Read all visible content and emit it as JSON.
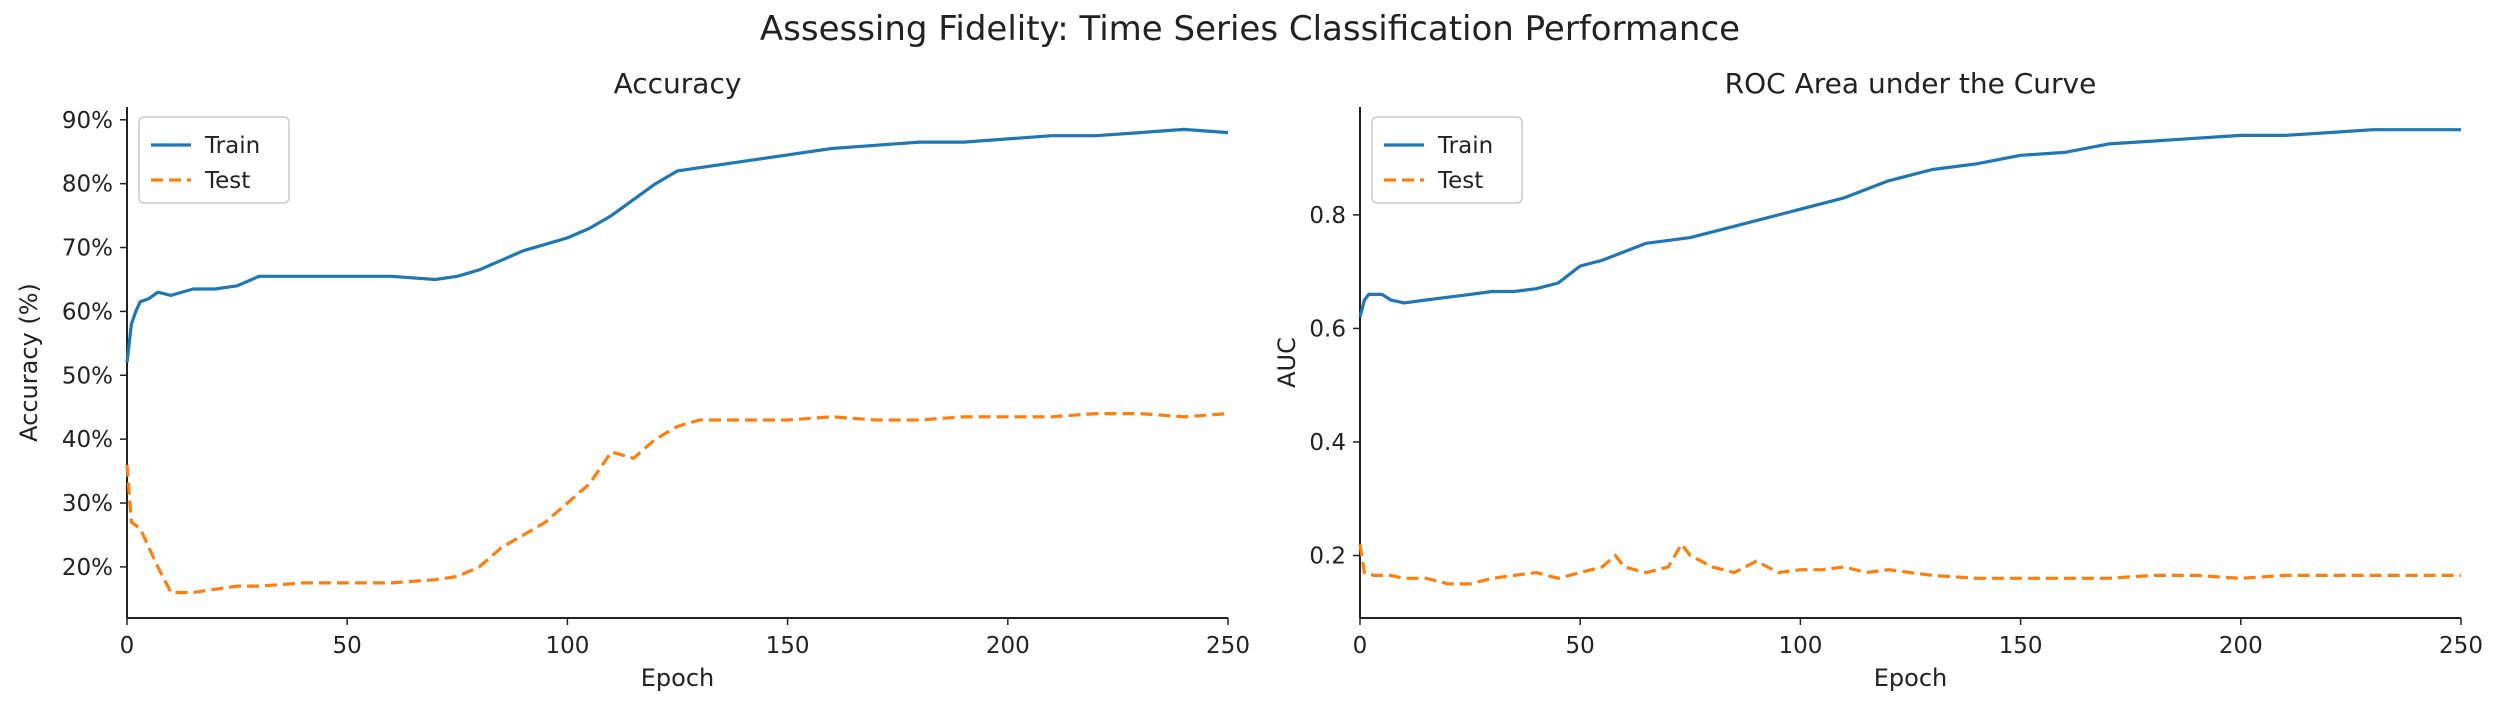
{
  "figure": {
    "title": "Assessing Fidelity: Time Series Classification Performance"
  },
  "colors": {
    "train": "#1f77b4",
    "test": "#ff7f0e",
    "axis": "#222222"
  },
  "chart_data": [
    {
      "type": "line",
      "title": "Accuracy",
      "xlabel": "Epoch",
      "ylabel": "Accuracy (%)",
      "xlim": [
        0,
        250
      ],
      "ylim": [
        12,
        92
      ],
      "xticks": [
        0,
        50,
        100,
        150,
        200,
        250
      ],
      "yticks": [
        20,
        30,
        40,
        50,
        60,
        70,
        80,
        90
      ],
      "ytick_labels": [
        "20%",
        "30%",
        "40%",
        "50%",
        "60%",
        "70%",
        "80%",
        "90%"
      ],
      "grid": false,
      "legend": "top-left",
      "series": [
        {
          "name": "Train",
          "style": "solid",
          "x": [
            0,
            1,
            2,
            3,
            5,
            7,
            10,
            15,
            20,
            25,
            30,
            40,
            50,
            60,
            70,
            75,
            80,
            85,
            90,
            95,
            100,
            105,
            110,
            115,
            120,
            125,
            130,
            140,
            150,
            160,
            170,
            180,
            190,
            200,
            210,
            220,
            230,
            240,
            250
          ],
          "y": [
            52,
            58,
            60,
            61.5,
            62,
            63,
            62.5,
            63.5,
            63.5,
            64,
            65.5,
            65.5,
            65.5,
            65.5,
            65,
            65.5,
            66.5,
            68,
            69.5,
            70.5,
            71.5,
            73,
            75,
            77.5,
            80,
            82,
            82.5,
            83.5,
            84.5,
            85.5,
            86,
            86.5,
            86.5,
            87,
            87.5,
            87.5,
            88,
            88.5,
            88
          ]
        },
        {
          "name": "Test",
          "style": "dashed",
          "x": [
            0,
            1,
            2,
            3,
            5,
            7,
            10,
            15,
            20,
            25,
            30,
            40,
            50,
            60,
            70,
            75,
            80,
            85,
            90,
            95,
            100,
            105,
            108,
            110,
            115,
            120,
            125,
            130,
            140,
            150,
            160,
            170,
            180,
            190,
            200,
            210,
            220,
            230,
            240,
            250
          ],
          "y": [
            36,
            27,
            26.5,
            26,
            23,
            20,
            16,
            16,
            16.5,
            17,
            17,
            17.5,
            17.5,
            17.5,
            18,
            18.5,
            20,
            23,
            25,
            27,
            30,
            33,
            36,
            38,
            37,
            40,
            42,
            43,
            43,
            43,
            43.5,
            43,
            43,
            43.5,
            43.5,
            43.5,
            44,
            44,
            43.5,
            44
          ]
        }
      ]
    },
    {
      "type": "line",
      "title": "ROC Area under the Curve",
      "xlabel": "Epoch",
      "ylabel": "AUC",
      "xlim": [
        0,
        250
      ],
      "ylim": [
        0.09,
        0.99
      ],
      "xticks": [
        0,
        50,
        100,
        150,
        200,
        250
      ],
      "yticks": [
        0.2,
        0.4,
        0.6,
        0.8
      ],
      "ytick_labels": [
        "0.2",
        "0.4",
        "0.6",
        "0.8"
      ],
      "grid": false,
      "legend": "top-left",
      "series": [
        {
          "name": "Train",
          "style": "solid",
          "x": [
            0,
            1,
            2,
            3,
            5,
            7,
            10,
            15,
            20,
            25,
            30,
            35,
            40,
            45,
            50,
            55,
            60,
            65,
            70,
            75,
            80,
            90,
            100,
            110,
            120,
            130,
            140,
            150,
            160,
            170,
            180,
            190,
            200,
            210,
            220,
            230,
            240,
            250
          ],
          "y": [
            0.62,
            0.65,
            0.66,
            0.66,
            0.66,
            0.65,
            0.645,
            0.65,
            0.655,
            0.66,
            0.665,
            0.665,
            0.67,
            0.68,
            0.71,
            0.72,
            0.735,
            0.75,
            0.755,
            0.76,
            0.77,
            0.79,
            0.81,
            0.83,
            0.86,
            0.88,
            0.89,
            0.905,
            0.91,
            0.925,
            0.93,
            0.935,
            0.94,
            0.94,
            0.945,
            0.95,
            0.95,
            0.95
          ]
        },
        {
          "name": "Test",
          "style": "dashed",
          "x": [
            0,
            1,
            2,
            3,
            5,
            7,
            10,
            15,
            20,
            25,
            30,
            35,
            40,
            45,
            50,
            55,
            58,
            60,
            65,
            70,
            73,
            75,
            80,
            85,
            90,
            95,
            100,
            105,
            110,
            115,
            120,
            130,
            140,
            150,
            160,
            170,
            180,
            190,
            200,
            210,
            220,
            230,
            240,
            250
          ],
          "y": [
            0.22,
            0.17,
            0.17,
            0.165,
            0.165,
            0.165,
            0.16,
            0.16,
            0.15,
            0.15,
            0.16,
            0.165,
            0.17,
            0.16,
            0.17,
            0.18,
            0.2,
            0.18,
            0.17,
            0.18,
            0.22,
            0.2,
            0.18,
            0.17,
            0.19,
            0.17,
            0.175,
            0.175,
            0.18,
            0.17,
            0.175,
            0.165,
            0.16,
            0.16,
            0.16,
            0.16,
            0.165,
            0.165,
            0.16,
            0.165,
            0.165,
            0.165,
            0.165,
            0.165
          ]
        }
      ]
    }
  ]
}
